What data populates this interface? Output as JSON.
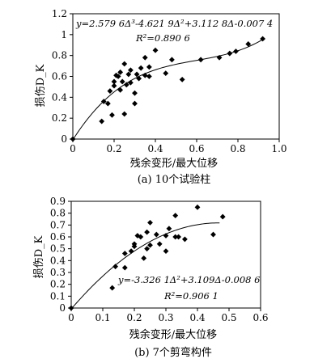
{
  "chart_data": [
    {
      "type": "scatter",
      "caption": "(a) 10个试验柱",
      "xlabel": "残余变形/最大位移",
      "ylabel": "损伤D_K",
      "equation": "y=2.579 6Δ³-4.621 9Δ²+3.112 8Δ-0.007 4",
      "r2_label": "R²=0.890 6",
      "xlim": [
        0,
        1.0
      ],
      "ylim": [
        0,
        1.2
      ],
      "xticks": [
        0,
        0.2,
        0.4,
        0.6,
        0.8,
        1.0
      ],
      "xtick_labels": [
        "0",
        "0.2",
        "0.4",
        "0.6",
        "0.8",
        "1.0"
      ],
      "yticks": [
        0,
        0.2,
        0.4,
        0.6,
        0.8,
        1.0,
        1.2
      ],
      "ytick_labels": [
        "0",
        "0.2",
        "0.4",
        "0.6",
        "0.8",
        "1",
        "1.2"
      ],
      "fit": {
        "coefficients": [
          2.5796,
          -4.6219,
          3.1128,
          -0.0074
        ],
        "x_range": [
          0,
          0.93
        ]
      },
      "points": [
        [
          0.0,
          0.0
        ],
        [
          0.14,
          0.17
        ],
        [
          0.15,
          0.36
        ],
        [
          0.17,
          0.34
        ],
        [
          0.18,
          0.46
        ],
        [
          0.19,
          0.23
        ],
        [
          0.2,
          0.55
        ],
        [
          0.2,
          0.51
        ],
        [
          0.21,
          0.61
        ],
        [
          0.22,
          0.6
        ],
        [
          0.23,
          0.47
        ],
        [
          0.23,
          0.64
        ],
        [
          0.24,
          0.55
        ],
        [
          0.25,
          0.24
        ],
        [
          0.25,
          0.72
        ],
        [
          0.26,
          0.52
        ],
        [
          0.27,
          0.62
        ],
        [
          0.28,
          0.66
        ],
        [
          0.28,
          0.54
        ],
        [
          0.3,
          0.34
        ],
        [
          0.3,
          0.44
        ],
        [
          0.31,
          0.62
        ],
        [
          0.32,
          0.58
        ],
        [
          0.33,
          0.68
        ],
        [
          0.35,
          0.78
        ],
        [
          0.35,
          0.61
        ],
        [
          0.37,
          0.6
        ],
        [
          0.37,
          0.69
        ],
        [
          0.4,
          0.85
        ],
        [
          0.45,
          0.63
        ],
        [
          0.48,
          0.76
        ],
        [
          0.53,
          0.57
        ],
        [
          0.62,
          0.76
        ],
        [
          0.71,
          0.78
        ],
        [
          0.76,
          0.82
        ],
        [
          0.79,
          0.84
        ],
        [
          0.85,
          0.91
        ],
        [
          0.92,
          0.96
        ]
      ]
    },
    {
      "type": "scatter",
      "caption": "(b) 7个剪弯构件",
      "xlabel": "残余变形/最大位移",
      "ylabel": "损伤D_K",
      "equation": "y=-3.326 1Δ²+3.109Δ-0.008 6",
      "r2_label": "R²=0.906 1",
      "xlim": [
        0,
        0.6
      ],
      "ylim": [
        0,
        0.9
      ],
      "xticks": [
        0,
        0.1,
        0.2,
        0.3,
        0.4,
        0.5,
        0.6
      ],
      "xtick_labels": [
        "0",
        "0.1",
        "0.2",
        "0.3",
        "0.4",
        "0.5",
        "0.6"
      ],
      "yticks": [
        0,
        0.1,
        0.2,
        0.3,
        0.4,
        0.5,
        0.6,
        0.7,
        0.8,
        0.9
      ],
      "ytick_labels": [
        "0",
        "0.1",
        "0.2",
        "0.3",
        "0.4",
        "0.5",
        "0.6",
        "0.7",
        "0.8",
        "0.9"
      ],
      "fit": {
        "coefficients": [
          -3.3261,
          3.109,
          -0.0086
        ],
        "x_range": [
          0,
          0.47
        ]
      },
      "points": [
        [
          0.0,
          0.0
        ],
        [
          0.13,
          0.17
        ],
        [
          0.14,
          0.35
        ],
        [
          0.17,
          0.34
        ],
        [
          0.17,
          0.46
        ],
        [
          0.19,
          0.48
        ],
        [
          0.2,
          0.52
        ],
        [
          0.2,
          0.54
        ],
        [
          0.21,
          0.61
        ],
        [
          0.22,
          0.6
        ],
        [
          0.23,
          0.42
        ],
        [
          0.24,
          0.5
        ],
        [
          0.24,
          0.64
        ],
        [
          0.25,
          0.72
        ],
        [
          0.25,
          0.53
        ],
        [
          0.27,
          0.62
        ],
        [
          0.28,
          0.54
        ],
        [
          0.3,
          0.61
        ],
        [
          0.3,
          0.48
        ],
        [
          0.31,
          0.67
        ],
        [
          0.33,
          0.6
        ],
        [
          0.33,
          0.78
        ],
        [
          0.34,
          0.6
        ],
        [
          0.36,
          0.58
        ],
        [
          0.4,
          0.85
        ],
        [
          0.45,
          0.62
        ],
        [
          0.48,
          0.77
        ]
      ]
    }
  ]
}
